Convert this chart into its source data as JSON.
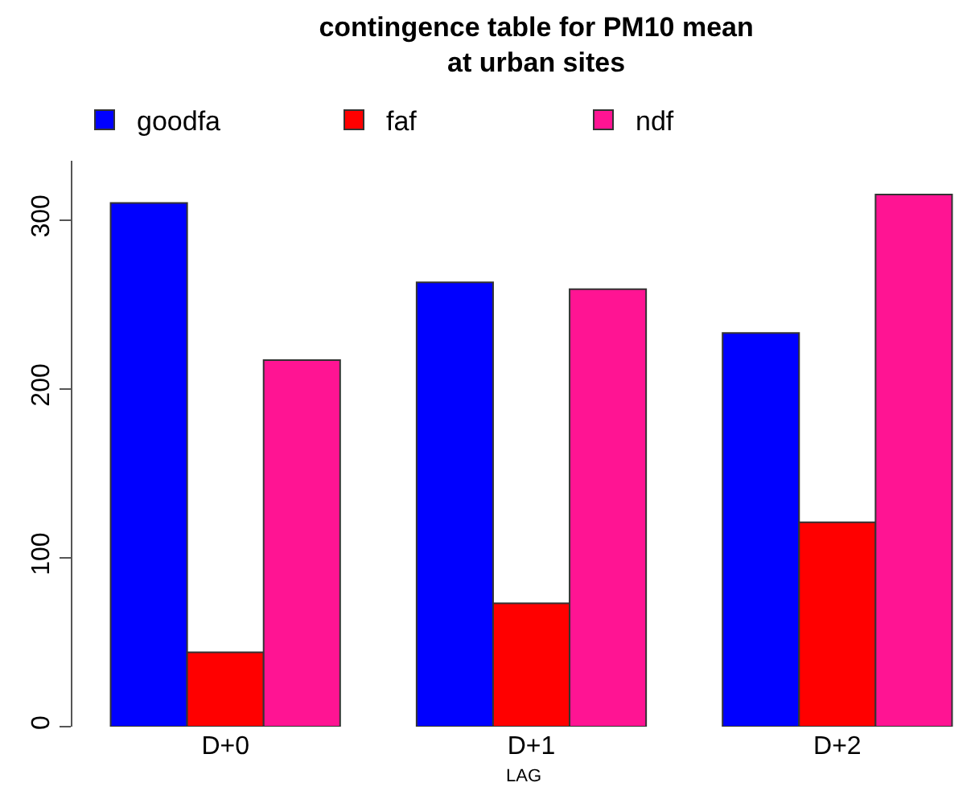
{
  "chart_data": {
    "type": "bar",
    "title": "contingence table for PM10 mean\nat urban sites",
    "xlabel": "LAG",
    "categories": [
      "D+0",
      "D+1",
      "D+2"
    ],
    "series": [
      {
        "name": "goodfa",
        "color": "#0000ff",
        "values": [
          310,
          263,
          233
        ]
      },
      {
        "name": "faf",
        "color": "#ff0000",
        "values": [
          44,
          73,
          121
        ]
      },
      {
        "name": "ndf",
        "color": "#ff1493",
        "values": [
          217,
          259,
          315
        ]
      }
    ],
    "ylim": [
      0,
      335
    ],
    "yticks": [
      0,
      100,
      200,
      300
    ],
    "grid": false,
    "legend": "top left"
  }
}
